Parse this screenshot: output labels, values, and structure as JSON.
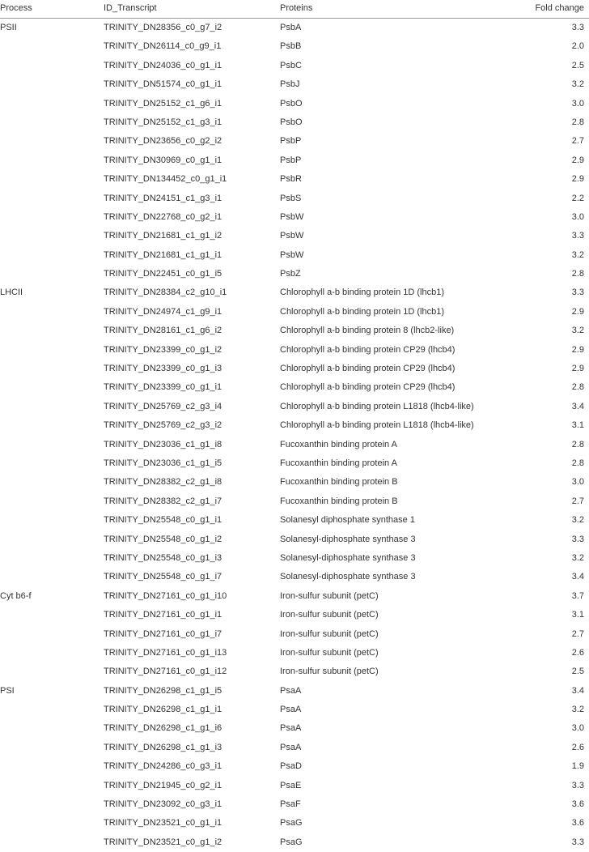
{
  "headers": {
    "process": "Process",
    "id": "ID_Transcript",
    "protein": "Proteins",
    "fold": "Fold change"
  },
  "rows": [
    {
      "process": "PSII",
      "id": "TRINITY_DN28356_c0_g7_i2",
      "protein": "PsbA",
      "fold": "3.3"
    },
    {
      "process": "",
      "id": "TRINITY_DN26114_c0_g9_i1",
      "protein": "PsbB",
      "fold": "2.0"
    },
    {
      "process": "",
      "id": "TRINITY_DN24036_c0_g1_i1",
      "protein": "PsbC",
      "fold": "2.5"
    },
    {
      "process": "",
      "id": "TRINITY_DN51574_c0_g1_i1",
      "protein": "PsbJ",
      "fold": "3.2"
    },
    {
      "process": "",
      "id": "TRINITY_DN25152_c1_g6_i1",
      "protein": "PsbO",
      "fold": "3.0"
    },
    {
      "process": "",
      "id": "TRINITY_DN25152_c1_g3_i1",
      "protein": "PsbO",
      "fold": "2.8"
    },
    {
      "process": "",
      "id": "TRINITY_DN23656_c0_g2_i2",
      "protein": "PsbP",
      "fold": "2.7"
    },
    {
      "process": "",
      "id": "TRINITY_DN30969_c0_g1_i1",
      "protein": "PsbP",
      "fold": "2.9"
    },
    {
      "process": "",
      "id": "TRINITY_DN134452_c0_g1_i1",
      "protein": "PsbR",
      "fold": "2.9"
    },
    {
      "process": "",
      "id": "TRINITY_DN24151_c1_g3_i1",
      "protein": "PsbS",
      "fold": "2.2"
    },
    {
      "process": "",
      "id": "TRINITY_DN22768_c0_g2_i1",
      "protein": "PsbW",
      "fold": "3.0"
    },
    {
      "process": "",
      "id": "TRINITY_DN21681_c1_g1_i2",
      "protein": "PsbW",
      "fold": "3.3"
    },
    {
      "process": "",
      "id": "TRINITY_DN21681_c1_g1_i1",
      "protein": "PsbW",
      "fold": "3.2"
    },
    {
      "process": "",
      "id": "TRINITY_DN22451_c0_g1_i5",
      "protein": "PsbZ",
      "fold": "2.8"
    },
    {
      "process": "LHCII",
      "id": "TRINITY_DN28384_c2_g10_i1",
      "protein": "Chlorophyll a-b binding protein 1D (lhcb1)",
      "fold": "3.3"
    },
    {
      "process": "",
      "id": "TRINITY_DN24974_c1_g9_i1",
      "protein": "Chlorophyll a-b binding protein 1D (lhcb1)",
      "fold": "2.9"
    },
    {
      "process": "",
      "id": "TRINITY_DN28161_c1_g6_i2",
      "protein": "Chlorophyll a-b binding protein 8 (lhcb2-like)",
      "fold": "3.2"
    },
    {
      "process": "",
      "id": "TRINITY_DN23399_c0_g1_i2",
      "protein": "Chlorophyll a-b binding protein CP29 (lhcb4)",
      "fold": "2.9"
    },
    {
      "process": "",
      "id": "TRINITY_DN23399_c0_g1_i3",
      "protein": "Chlorophyll a-b binding protein CP29 (lhcb4)",
      "fold": "2.9"
    },
    {
      "process": "",
      "id": "TRINITY_DN23399_c0_g1_i1",
      "protein": "Chlorophyll a-b binding protein CP29 (lhcb4)",
      "fold": "2.8"
    },
    {
      "process": "",
      "id": "TRINITY_DN25769_c2_g3_i4",
      "protein": "Chlorophyll a-b binding protein L1818 (lhcb4-like)",
      "fold": "3.4"
    },
    {
      "process": "",
      "id": "TRINITY_DN25769_c2_g3_i2",
      "protein": "Chlorophyll a-b binding protein L1818 (lhcb4-like)",
      "fold": "3.1"
    },
    {
      "process": "",
      "id": "TRINITY_DN23036_c1_g1_i8",
      "protein": "Fucoxanthin binding protein A",
      "fold": "2.8"
    },
    {
      "process": "",
      "id": "TRINITY_DN23036_c1_g1_i5",
      "protein": "Fucoxanthin binding protein A",
      "fold": "2.8"
    },
    {
      "process": "",
      "id": "TRINITY_DN28382_c2_g1_i8",
      "protein": "Fucoxanthin binding protein B",
      "fold": "3.0"
    },
    {
      "process": "",
      "id": "TRINITY_DN28382_c2_g1_i7",
      "protein": "Fucoxanthin binding protein B",
      "fold": "2.7"
    },
    {
      "process": "",
      "id": "TRINITY_DN25548_c0_g1_i1",
      "protein": "Solanesyl diphosphate synthase 1",
      "fold": "3.2"
    },
    {
      "process": "",
      "id": "TRINITY_DN25548_c0_g1_i2",
      "protein": "Solanesyl-diphosphate synthase 3",
      "fold": "3.3"
    },
    {
      "process": "",
      "id": "TRINITY_DN25548_c0_g1_i3",
      "protein": "Solanesyl-diphosphate synthase 3",
      "fold": "3.2"
    },
    {
      "process": "",
      "id": "TRINITY_DN25548_c0_g1_i7",
      "protein": "Solanesyl-diphosphate synthase 3",
      "fold": "3.4"
    },
    {
      "process": "Cyt b6-f",
      "id": "TRINITY_DN27161_c0_g1_i10",
      "protein": "Iron-sulfur subunit (petC)",
      "fold": "3.7"
    },
    {
      "process": "",
      "id": "TRINITY_DN27161_c0_g1_i1",
      "protein": "Iron-sulfur subunit (petC)",
      "fold": "3.1"
    },
    {
      "process": "",
      "id": "TRINITY_DN27161_c0_g1_i7",
      "protein": "Iron-sulfur subunit (petC)",
      "fold": "2.7"
    },
    {
      "process": "",
      "id": "TRINITY_DN27161_c0_g1_i13",
      "protein": "Iron-sulfur subunit (petC)",
      "fold": "2.6"
    },
    {
      "process": "",
      "id": "TRINITY_DN27161_c0_g1_i12",
      "protein": "Iron-sulfur subunit (petC)",
      "fold": "2.5"
    },
    {
      "process": "PSI",
      "id": "TRINITY_DN26298_c1_g1_i5",
      "protein": "PsaA",
      "fold": "3.4"
    },
    {
      "process": "",
      "id": "TRINITY_DN26298_c1_g1_i1",
      "protein": "PsaA",
      "fold": "3.2"
    },
    {
      "process": "",
      "id": "TRINITY_DN26298_c1_g1_i6",
      "protein": "PsaA",
      "fold": "3.0"
    },
    {
      "process": "",
      "id": "TRINITY_DN26298_c1_g1_i3",
      "protein": "PsaA",
      "fold": "2.6"
    },
    {
      "process": "",
      "id": "TRINITY_DN24286_c0_g3_i1",
      "protein": "PsaD",
      "fold": "1.9"
    },
    {
      "process": "",
      "id": "TRINITY_DN21945_c0_g2_i1",
      "protein": "PsaE",
      "fold": "3.3"
    },
    {
      "process": "",
      "id": "TRINITY_DN23092_c0_g3_i1",
      "protein": "PsaF",
      "fold": "3.6"
    },
    {
      "process": "",
      "id": "TRINITY_DN23521_c0_g1_i1",
      "protein": "PsaG",
      "fold": "3.6"
    },
    {
      "process": "",
      "id": "TRINITY_DN23521_c0_g1_i2",
      "protein": "PsaG",
      "fold": "3.3"
    }
  ]
}
